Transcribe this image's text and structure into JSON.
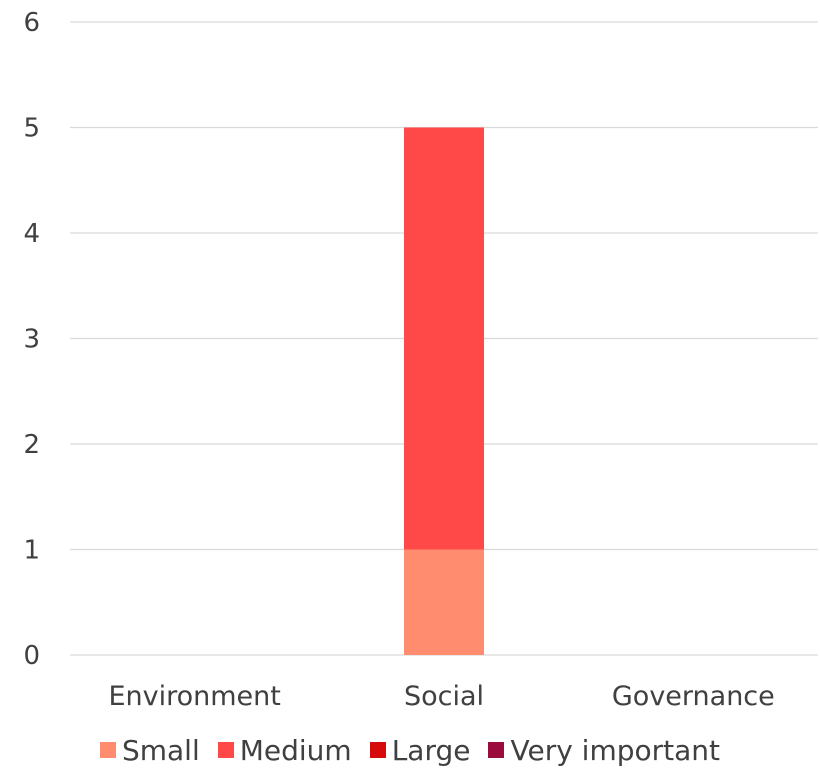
{
  "chart_data": {
    "type": "bar",
    "stacked": true,
    "categories": [
      "Environment",
      "Social",
      "Governance"
    ],
    "series": [
      {
        "name": "Small",
        "color": "#FF8C6E",
        "values": [
          0,
          1,
          0
        ]
      },
      {
        "name": "Medium",
        "color": "#FF4848",
        "values": [
          0,
          4,
          0
        ]
      },
      {
        "name": "Large",
        "color": "#D60A0A",
        "values": [
          0,
          0,
          0
        ]
      },
      {
        "name": "Very important",
        "color": "#9B0C3E",
        "values": [
          0,
          0,
          0
        ]
      }
    ],
    "ylim": [
      0,
      6
    ],
    "yticks": [
      "0",
      "1",
      "2",
      "3",
      "4",
      "5",
      "6"
    ],
    "grid": true,
    "legend_position": "bottom"
  }
}
